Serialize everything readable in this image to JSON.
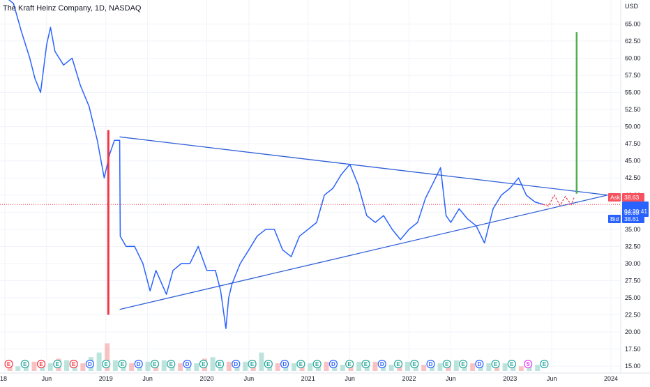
{
  "header": {
    "title": "The Kraft Heinz Company, 1D, NASDAQ",
    "currency": "USD"
  },
  "price_labels": {
    "ask_tag": "Ask",
    "ask_value": "38.63",
    "last_value": "38.63",
    "countdown": "04:30:41",
    "bid_tag": "Bid",
    "bid_value": "38.61"
  },
  "colors": {
    "price_line": "#2962ff",
    "trendline": "#2f5fd6",
    "red_marker": "#f23645",
    "green_marker": "#4caf50",
    "ask_bg": "#f7525f",
    "bid_bg": "#2962ff",
    "grid": "#f0f3fa",
    "earnings_badge": "#26a69a",
    "dividend_badge": "#2962ff",
    "split_badge": "#e040fb"
  },
  "chart_data": {
    "type": "line",
    "title": "The Kraft Heinz Company, 1D, NASDAQ",
    "xlabel": "",
    "ylabel": "USD",
    "ylim": [
      14,
      68.5
    ],
    "xlim": [
      "2018-01-01",
      "2024-01-01"
    ],
    "y_ticks": [
      "15.00",
      "17.50",
      "20.00",
      "22.50",
      "25.00",
      "27.50",
      "30.00",
      "32.50",
      "35.00",
      "37.50",
      "40.00",
      "42.50",
      "45.00",
      "47.50",
      "50.00",
      "52.50",
      "55.00",
      "57.50",
      "60.00",
      "62.50",
      "65.00"
    ],
    "x_ticks": [
      "18",
      "Jun",
      "2019",
      "Jun",
      "2020",
      "Jun",
      "2021",
      "Jun",
      "2022",
      "Jun",
      "2023",
      "Jun",
      "2024"
    ],
    "grid": true,
    "series": [
      {
        "x": [
          "2018-01-01",
          "2018-02-01",
          "2018-03-01",
          "2018-04-01",
          "2018-04-20",
          "2018-05-10",
          "2018-06-01",
          "2018-06-15",
          "2018-07-01",
          "2018-08-01",
          "2018-09-01",
          "2018-10-01",
          "2018-11-01",
          "2018-12-01",
          "2018-12-26",
          "2019-01-15",
          "2019-02-01",
          "2019-02-20",
          "2019-02-22",
          "2019-03-15",
          "2019-04-15",
          "2019-05-15",
          "2019-06-10",
          "2019-07-01",
          "2019-08-08",
          "2019-09-01",
          "2019-10-01",
          "2019-11-01",
          "2019-12-01",
          "2020-01-01",
          "2020-02-01",
          "2020-02-20",
          "2020-03-10",
          "2020-03-20",
          "2020-04-01",
          "2020-05-01",
          "2020-06-01",
          "2020-07-01",
          "2020-08-01",
          "2020-09-01",
          "2020-10-01",
          "2020-11-01",
          "2020-12-01",
          "2021-01-01",
          "2021-02-01",
          "2021-03-01",
          "2021-04-01",
          "2021-05-01",
          "2021-06-01",
          "2021-07-01",
          "2021-08-01",
          "2021-09-01",
          "2021-10-01",
          "2021-11-01",
          "2021-12-01",
          "2022-01-01",
          "2022-02-01",
          "2022-03-01",
          "2022-04-01",
          "2022-04-25",
          "2022-05-15",
          "2022-06-01",
          "2022-07-01",
          "2022-08-01",
          "2022-09-01",
          "2022-10-01",
          "2022-11-01",
          "2022-12-01",
          "2023-01-01",
          "2023-02-01",
          "2023-03-01",
          "2023-04-01",
          "2023-05-01"
        ],
        "values": [
          69.0,
          68.0,
          64.0,
          60.0,
          57.0,
          55.0,
          62.0,
          64.5,
          61.0,
          59.0,
          60.0,
          56.0,
          53.0,
          48.0,
          42.5,
          46.0,
          48.0,
          48.0,
          34.0,
          32.5,
          32.5,
          30.0,
          26.0,
          29.0,
          25.5,
          29.0,
          30.0,
          30.0,
          32.5,
          29.0,
          29.0,
          26.0,
          20.5,
          25.0,
          27.0,
          30.0,
          32.0,
          34.0,
          35.0,
          35.0,
          32.0,
          31.0,
          34.0,
          35.0,
          36.0,
          40.0,
          41.0,
          43.0,
          44.5,
          41.5,
          37.0,
          36.0,
          37.0,
          35.0,
          33.5,
          35.0,
          36.0,
          39.5,
          42.0,
          44.0,
          37.0,
          36.0,
          38.0,
          36.5,
          35.5,
          33.0,
          38.0,
          40.0,
          41.0,
          42.5,
          40.0,
          39.0,
          38.63
        ]
      },
      {
        "x": [
          "2023-05-01",
          "2023-05-20",
          "2023-06-10",
          "2023-07-01",
          "2023-07-20",
          "2023-08-10",
          "2023-08-20"
        ],
        "values": [
          38.63,
          38.4,
          40.0,
          38.5,
          39.8,
          38.6,
          39.6
        ]
      }
    ],
    "trendlines": [
      {
        "x": [
          "2019-02-20",
          "2023-12-20"
        ],
        "y": [
          48.5,
          40.0
        ]
      },
      {
        "x": [
          "2019-02-20",
          "2023-12-20"
        ],
        "y": [
          23.3,
          40.0
        ]
      }
    ],
    "markers": [
      {
        "x": "2019-01-10",
        "y": [
          22.5,
          49.5
        ]
      },
      {
        "x": "2023-08-30",
        "y": [
          40.2,
          63.8
        ]
      }
    ],
    "price_line": 38.63,
    "volume_bars": [
      4,
      3,
      5,
      6,
      4,
      5,
      8,
      7,
      6,
      5,
      9,
      12,
      18,
      7,
      6,
      5,
      4,
      6,
      5,
      7,
      4,
      5,
      6,
      5,
      8,
      9,
      7,
      6,
      5,
      6,
      7,
      12,
      6,
      5,
      4,
      5,
      6,
      5,
      4,
      6,
      5,
      4,
      5,
      6,
      7,
      6,
      5,
      4,
      5,
      6,
      5,
      4,
      3,
      5,
      6,
      7,
      6,
      5,
      4,
      5,
      6,
      5,
      4,
      3,
      5,
      4
    ],
    "event_badges": [
      "E",
      "E",
      "E",
      "E",
      "E",
      "D",
      "E",
      "E",
      "D",
      "E",
      "E",
      "D",
      "E",
      "E",
      "D",
      "E",
      "E",
      "D",
      "E",
      "E",
      "D",
      "E",
      "E",
      "D",
      "E",
      "E",
      "D",
      "E",
      "E",
      "D",
      "E",
      "E",
      "S",
      "E"
    ]
  }
}
